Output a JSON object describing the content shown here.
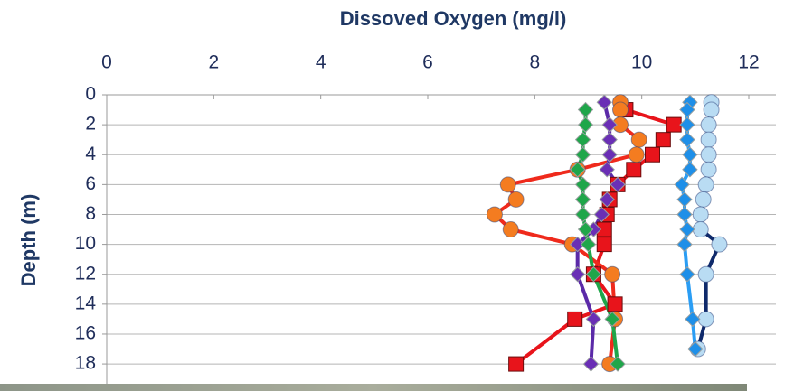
{
  "chart_data": {
    "type": "scatter",
    "lines": true,
    "x_label": "Dissoved Oxygen (mg/l)",
    "y_label": "Depth (m)",
    "x_axis_position": "top",
    "y_inverted": true,
    "grid": true,
    "xlim": [
      0,
      12
    ],
    "xticks": [
      0,
      2,
      4,
      6,
      8,
      10,
      12
    ],
    "ylim": [
      0,
      20
    ],
    "yticks": [
      0,
      2,
      4,
      6,
      8,
      10,
      12,
      14,
      16,
      18
    ],
    "series": [
      {
        "marker": "square",
        "color": "#e8141b",
        "line_color": "#e8141b",
        "x": [
          9.7,
          10.6,
          10.4,
          10.2,
          9.85,
          9.55,
          9.4,
          9.35,
          9.3,
          9.3,
          9.1,
          9.5,
          8.75,
          7.65
        ],
        "y": [
          1,
          2,
          3,
          4,
          5,
          6,
          7,
          8,
          9,
          10,
          12,
          14,
          15,
          18
        ]
      },
      {
        "marker": "circle",
        "color": "#f47c20",
        "line_color": "#ef2a1c",
        "x": [
          9.6,
          9.6,
          9.6,
          9.95,
          9.9,
          8.8,
          7.5,
          7.65,
          7.25,
          7.55,
          8.7,
          9.45,
          9.5,
          9.4
        ],
        "y": [
          0.5,
          1,
          2,
          3,
          4,
          5,
          6,
          7,
          8,
          9,
          10,
          12,
          15,
          18
        ]
      },
      {
        "marker": "diamond",
        "color": "#6a2fb5",
        "line_color": "#5b2aa8",
        "x": [
          9.3,
          9.4,
          9.4,
          9.4,
          9.35,
          9.55,
          9.35,
          9.25,
          9.1,
          8.8,
          8.8,
          9.1,
          9.05
        ],
        "y": [
          0.5,
          2,
          3,
          4,
          5,
          6,
          7,
          8,
          9,
          10,
          12,
          15,
          18
        ]
      },
      {
        "marker": "diamond",
        "color": "#1fa64a",
        "line_color": "#1fa64a",
        "x": [
          8.95,
          8.95,
          8.9,
          8.9,
          8.8,
          8.9,
          8.9,
          8.9,
          8.95,
          9.0,
          9.1,
          9.45,
          9.55
        ],
        "y": [
          1,
          2,
          3,
          4,
          5,
          6,
          7,
          8,
          9,
          10,
          12,
          15,
          18
        ]
      },
      {
        "marker": "circle",
        "color": "#b9dcf3",
        "line_color": "#0f2a6b",
        "x": [
          11.3,
          11.3,
          11.25,
          11.25,
          11.25,
          11.25,
          11.2,
          11.15,
          11.1,
          11.1,
          11.45,
          11.2,
          11.2,
          11.05
        ],
        "y": [
          0.5,
          1,
          2,
          3,
          4,
          5,
          6,
          7,
          8,
          9,
          10,
          12,
          15,
          17
        ]
      },
      {
        "marker": "diamond",
        "color": "#1e8fe8",
        "line_color": "#2a9df4",
        "x": [
          10.9,
          10.85,
          10.85,
          10.85,
          10.9,
          10.9,
          10.75,
          10.8,
          10.8,
          10.85,
          10.8,
          10.85,
          10.95,
          11.0
        ],
        "y": [
          0.5,
          1,
          2,
          3,
          4,
          5,
          6,
          7,
          8,
          9,
          10,
          12,
          15,
          17
        ]
      }
    ]
  }
}
